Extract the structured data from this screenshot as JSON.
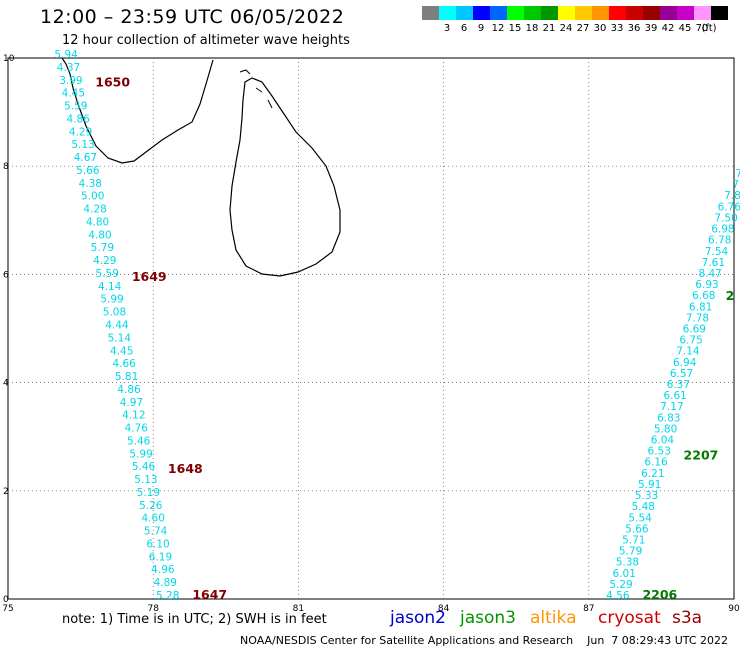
{
  "header": {
    "title": "12:00 – 23:59 UTC 06/05/2022",
    "subtitle": "12 hour collection of altimeter wave heights"
  },
  "color_scale": {
    "unit_label": "(ft)",
    "items": [
      {
        "label": "",
        "color": "#7f7f7f"
      },
      {
        "label": "3",
        "color": "#00ffff"
      },
      {
        "label": "6",
        "color": "#00c8ff"
      },
      {
        "label": "9",
        "color": "#0000ff"
      },
      {
        "label": "12",
        "color": "#0064ff"
      },
      {
        "label": "15",
        "color": "#00ff00"
      },
      {
        "label": "18",
        "color": "#00c800"
      },
      {
        "label": "21",
        "color": "#009600"
      },
      {
        "label": "24",
        "color": "#ffff00"
      },
      {
        "label": "27",
        "color": "#ffc800"
      },
      {
        "label": "30",
        "color": "#ff9600"
      },
      {
        "label": "33",
        "color": "#ff0000"
      },
      {
        "label": "36",
        "color": "#c80000"
      },
      {
        "label": "39",
        "color": "#960000"
      },
      {
        "label": "42",
        "color": "#960096"
      },
      {
        "label": "45",
        "color": "#c800c8"
      },
      {
        "label": "70",
        "color": "#ff96ff"
      },
      {
        "label": "",
        "color": "#000000"
      }
    ]
  },
  "axes": {
    "x_ticks": [
      "75",
      "78",
      "81",
      "84",
      "87",
      "90"
    ],
    "y_ticks": [
      "0",
      "2",
      "4",
      "6",
      "8",
      "10"
    ],
    "lon_range": [
      75,
      90
    ],
    "lat_range": [
      0,
      10
    ]
  },
  "tracks": [
    {
      "name": "west",
      "color": "#00d8e8",
      "lon_start": 76.2,
      "lat_start": 10.0,
      "lon_end": 78.3,
      "lat_end": 0.0,
      "values": [
        "5.94",
        "4.37",
        "3.99",
        "4.45",
        "5.59",
        "4.86",
        "4.29",
        "5.13",
        "4.67",
        "5.66",
        "4.38",
        "5.00",
        "4.28",
        "4.80",
        "4.80",
        "5.79",
        "4.29",
        "5.59",
        "4.14",
        "5.99",
        "5.08",
        "4.44",
        "5.14",
        "4.45",
        "4.66",
        "5.81",
        "4.86",
        "4.97",
        "4.12",
        "4.76",
        "5.46",
        "5.99",
        "5.46",
        "5.13",
        "5.19",
        "5.26",
        "4.60",
        "5.74",
        "6.10",
        "6.19",
        "4.96",
        "4.89",
        "5.28"
      ],
      "times": [
        {
          "label": "1650",
          "lat": 9.55,
          "color": "#800000"
        },
        {
          "label": "1649",
          "lat": 5.95,
          "color": "#800000"
        },
        {
          "label": "1648",
          "lat": 2.4,
          "color": "#800000"
        },
        {
          "label": "1647",
          "lat": 0.0,
          "color": "#800000"
        }
      ]
    },
    {
      "name": "east",
      "color": "#00d8e8",
      "lon_start": 87.6,
      "lat_start": 0.0,
      "lon_end": 90.1,
      "lat_end": 7.8,
      "values": [
        "4.56",
        "5.29",
        "6.01",
        "5.38",
        "5.79",
        "5.71",
        "5.66",
        "5.54",
        "5.48",
        "5.33",
        "5.91",
        "6.21",
        "6.16",
        "6.53",
        "6.04",
        "5.80",
        "6.83",
        "7.17",
        "6.61",
        "6.37",
        "6.57",
        "6.94",
        "7.14",
        "6.75",
        "6.69",
        "7.78",
        "6.81",
        "6.68",
        "6.93",
        "8.47",
        "7.61",
        "7.54",
        "6.78",
        "6.98",
        "7.50",
        "6.76",
        "7.8",
        "7",
        "7"
      ],
      "times": [
        {
          "label": "2206",
          "lat": 0.0,
          "color": "#007a00"
        },
        {
          "label": "2207",
          "lat": 2.65,
          "color": "#007a00"
        },
        {
          "label": "2",
          "lat": 5.6,
          "color": "#007a00"
        }
      ]
    }
  ],
  "footer": {
    "note": "note:  1) Time is in UTC;  2) SWH is in feet",
    "satellites": [
      {
        "label": "jason2",
        "color": "#0000cc"
      },
      {
        "label": "jason3",
        "color": "#009600"
      },
      {
        "label": "altika",
        "color": "#ff9600"
      },
      {
        "label": "cryosat",
        "color": "#cc0000"
      },
      {
        "label": "s3a",
        "color": "#960000"
      }
    ],
    "credit": "NOAA/NESDIS Center for Satellite Applications and Research    Jun  7 08:29:43 UTC 2022"
  }
}
